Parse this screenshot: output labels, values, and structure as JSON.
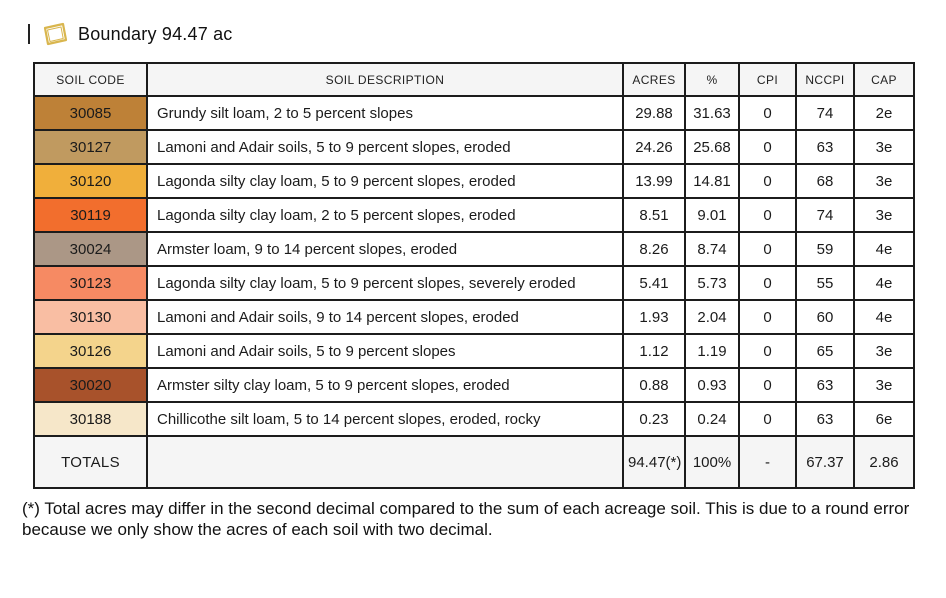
{
  "header": {
    "title": "Boundary 94.47 ac",
    "icon_color": "#D9B64E"
  },
  "table": {
    "columns": {
      "code": "SOIL CODE",
      "description": "SOIL DESCRIPTION",
      "acres": "ACRES",
      "pct": "%",
      "cpi": "CPI",
      "nccpi": "NCCPI",
      "cap": "CAP"
    },
    "rows": [
      {
        "code": "30085",
        "color": "#BE8137",
        "description": "Grundy silt loam, 2 to 5 percent slopes",
        "acres": "29.88",
        "pct": "31.63",
        "cpi": "0",
        "nccpi": "74",
        "cap": "2e"
      },
      {
        "code": "30127",
        "color": "#C09A60",
        "description": "Lamoni and Adair soils, 5 to 9 percent slopes, eroded",
        "acres": "24.26",
        "pct": "25.68",
        "cpi": "0",
        "nccpi": "63",
        "cap": "3e"
      },
      {
        "code": "30120",
        "color": "#F0AF3B",
        "description": "Lagonda silty clay loam, 5 to 9 percent slopes, eroded",
        "acres": "13.99",
        "pct": "14.81",
        "cpi": "0",
        "nccpi": "68",
        "cap": "3e"
      },
      {
        "code": "30119",
        "color": "#F26E2D",
        "description": "Lagonda silty clay loam, 2 to 5 percent slopes, eroded",
        "acres": "8.51",
        "pct": "9.01",
        "cpi": "0",
        "nccpi": "74",
        "cap": "3e"
      },
      {
        "code": "30024",
        "color": "#AB9786",
        "description": "Armster loam, 9 to 14 percent slopes, eroded",
        "acres": "8.26",
        "pct": "8.74",
        "cpi": "0",
        "nccpi": "59",
        "cap": "4e"
      },
      {
        "code": "30123",
        "color": "#F68A63",
        "description": "Lagonda silty clay loam, 5 to 9 percent slopes, severely eroded",
        "acres": "5.41",
        "pct": "5.73",
        "cpi": "0",
        "nccpi": "55",
        "cap": "4e"
      },
      {
        "code": "30130",
        "color": "#F9BEA3",
        "description": "Lamoni and Adair soils, 9 to 14 percent slopes, eroded",
        "acres": "1.93",
        "pct": "2.04",
        "cpi": "0",
        "nccpi": "60",
        "cap": "4e"
      },
      {
        "code": "30126",
        "color": "#F4D48C",
        "description": "Lamoni and Adair soils, 5 to 9 percent slopes",
        "acres": "1.12",
        "pct": "1.19",
        "cpi": "0",
        "nccpi": "65",
        "cap": "3e"
      },
      {
        "code": "30020",
        "color": "#A8522B",
        "description": "Armster silty clay loam, 5 to 9 percent slopes, eroded",
        "acres": "0.88",
        "pct": "0.93",
        "cpi": "0",
        "nccpi": "63",
        "cap": "3e"
      },
      {
        "code": "30188",
        "color": "#F6E7C9",
        "description": "Chillicothe silt loam, 5 to 14 percent slopes, eroded, rocky",
        "acres": "0.23",
        "pct": "0.24",
        "cpi": "0",
        "nccpi": "63",
        "cap": "6e"
      }
    ],
    "totals": {
      "label": "TOTALS",
      "description": "",
      "acres": "94.47(*)",
      "pct": "100%",
      "cpi": "-",
      "nccpi": "67.37",
      "cap": "2.86"
    }
  },
  "footnote": "(*) Total acres may differ in the second decimal compared to the sum of each acreage soil. This is due to a round error because we only show the acres of each soil with two decimal."
}
